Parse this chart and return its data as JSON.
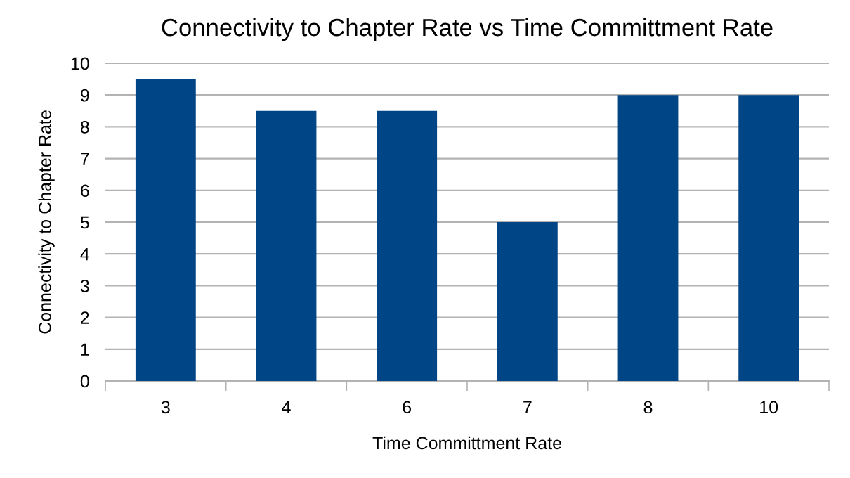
{
  "chart_data": {
    "type": "bar",
    "title": "Connectivity to Chapter Rate vs Time Committment Rate",
    "xlabel": "Time Committment Rate",
    "ylabel": "Connectivity to Chapter Rate",
    "categories": [
      "3",
      "4",
      "6",
      "7",
      "8",
      "10"
    ],
    "values": [
      9.5,
      8.5,
      8.5,
      5,
      9,
      9
    ],
    "color": "#004586",
    "ylim": [
      0,
      10
    ],
    "yticks": [
      0,
      1,
      2,
      3,
      4,
      5,
      6,
      7,
      8,
      9,
      10
    ],
    "grid": "y",
    "legend": false
  }
}
